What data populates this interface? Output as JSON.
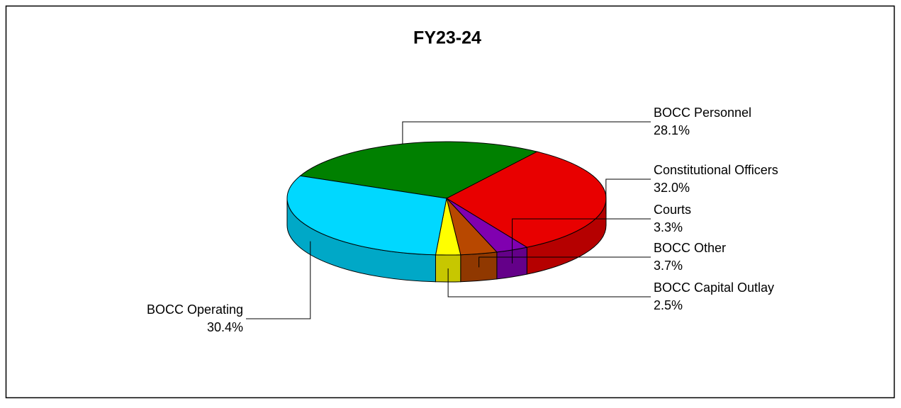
{
  "chart_data": {
    "type": "pie",
    "title": "FY23-24",
    "categories": [
      "BOCC Personnel",
      "Constitutional Officers",
      "Courts",
      "BOCC Other",
      "BOCC Capital Outlay",
      "BOCC Operating"
    ],
    "values": [
      28.1,
      32.0,
      3.3,
      3.7,
      2.5,
      30.4
    ],
    "value_labels": [
      "28.1%",
      "32.0%",
      "3.3%",
      "3.7%",
      "2.5%",
      "30.4%"
    ],
    "colors": [
      "#008000",
      "#e80000",
      "#8000b0",
      "#b84800",
      "#ffff00",
      "#00d8ff"
    ]
  }
}
